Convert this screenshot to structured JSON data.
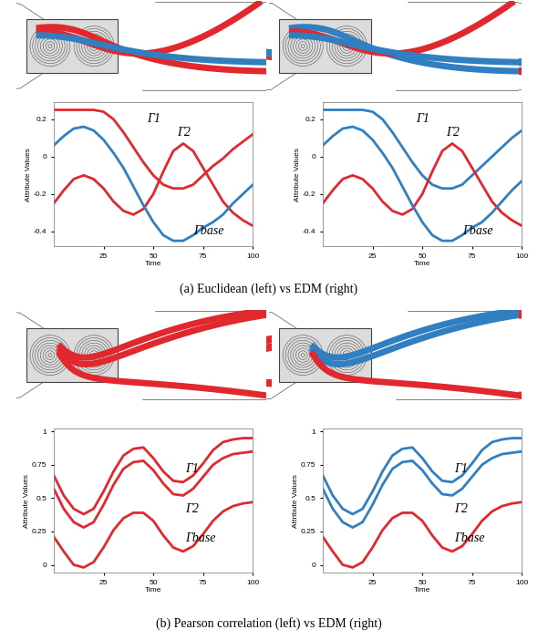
{
  "chart_data": [
    {
      "type": "line",
      "xlabel": "Time",
      "ylabel": "Attribute Values",
      "xlim": [
        0,
        100
      ],
      "ylim": [
        -0.48,
        0.29
      ],
      "xticks": [
        25,
        50,
        75,
        100
      ],
      "yticks": [
        -0.4,
        -0.2,
        0,
        0.2
      ],
      "x": [
        0,
        5,
        10,
        15,
        20,
        25,
        30,
        35,
        40,
        45,
        50,
        55,
        60,
        65,
        70,
        75,
        80,
        85,
        90,
        95,
        100
      ],
      "series": [
        {
          "name": "Γ1",
          "color": "#e0282e",
          "values": [
            0.25,
            0.25,
            0.25,
            0.25,
            0.25,
            0.24,
            0.2,
            0.13,
            0.05,
            -0.03,
            -0.1,
            -0.15,
            -0.17,
            -0.17,
            -0.15,
            -0.1,
            -0.05,
            -0.01,
            0.04,
            0.08,
            0.12
          ]
        },
        {
          "name": "Γ2",
          "color": "#e0282e",
          "values": [
            -0.25,
            -0.18,
            -0.12,
            -0.1,
            -0.12,
            -0.17,
            -0.24,
            -0.29,
            -0.31,
            -0.28,
            -0.2,
            -0.08,
            0.03,
            0.07,
            0.03,
            -0.06,
            -0.15,
            -0.24,
            -0.3,
            -0.34,
            -0.37
          ]
        },
        {
          "name": "Γbase",
          "color": "#2f7fc1",
          "values": [
            0.06,
            0.11,
            0.15,
            0.16,
            0.14,
            0.09,
            0.02,
            -0.06,
            -0.16,
            -0.26,
            -0.35,
            -0.42,
            -0.45,
            -0.45,
            -0.42,
            -0.38,
            -0.35,
            -0.31,
            -0.25,
            -0.2,
            -0.15
          ]
        }
      ]
    },
    {
      "type": "line",
      "xlabel": "Time",
      "ylabel": "Attribute Values",
      "xlim": [
        0,
        100
      ],
      "ylim": [
        -0.48,
        0.29
      ],
      "xticks": [
        25,
        50,
        75,
        100
      ],
      "yticks": [
        -0.4,
        -0.2,
        0,
        0.2
      ],
      "x": [
        0,
        5,
        10,
        15,
        20,
        25,
        30,
        35,
        40,
        45,
        50,
        55,
        60,
        65,
        70,
        75,
        80,
        85,
        90,
        95,
        100
      ],
      "series": [
        {
          "name": "Γ1",
          "color": "#2f7fc1",
          "values": [
            0.25,
            0.25,
            0.25,
            0.25,
            0.25,
            0.24,
            0.2,
            0.13,
            0.05,
            -0.03,
            -0.1,
            -0.15,
            -0.17,
            -0.17,
            -0.15,
            -0.1,
            -0.05,
            0.0,
            0.05,
            0.1,
            0.14
          ]
        },
        {
          "name": "Γ2",
          "color": "#e0282e",
          "values": [
            -0.25,
            -0.18,
            -0.12,
            -0.1,
            -0.12,
            -0.17,
            -0.24,
            -0.29,
            -0.31,
            -0.28,
            -0.2,
            -0.08,
            0.03,
            0.07,
            0.03,
            -0.06,
            -0.15,
            -0.24,
            -0.3,
            -0.34,
            -0.37
          ]
        },
        {
          "name": "Γbase",
          "color": "#2f7fc1",
          "values": [
            0.06,
            0.11,
            0.15,
            0.16,
            0.14,
            0.09,
            0.02,
            -0.06,
            -0.16,
            -0.26,
            -0.35,
            -0.42,
            -0.45,
            -0.45,
            -0.42,
            -0.38,
            -0.35,
            -0.3,
            -0.24,
            -0.18,
            -0.13
          ]
        }
      ]
    },
    {
      "type": "line",
      "xlabel": "Time",
      "ylabel": "Attribute Values",
      "xlim": [
        0,
        100
      ],
      "ylim": [
        -0.06,
        1.02
      ],
      "xticks": [
        25,
        50,
        75,
        100
      ],
      "yticks": [
        0,
        0.25,
        0.5,
        0.75,
        1
      ],
      "x": [
        0,
        5,
        10,
        15,
        20,
        25,
        30,
        35,
        40,
        45,
        50,
        55,
        60,
        65,
        70,
        75,
        80,
        85,
        90,
        95,
        100
      ],
      "series": [
        {
          "name": "Γ1",
          "color": "#e0282e",
          "values": [
            0.67,
            0.52,
            0.42,
            0.38,
            0.42,
            0.55,
            0.7,
            0.82,
            0.87,
            0.88,
            0.8,
            0.7,
            0.63,
            0.62,
            0.67,
            0.76,
            0.86,
            0.92,
            0.94,
            0.95,
            0.95
          ]
        },
        {
          "name": "Γ2",
          "color": "#e0282e",
          "values": [
            0.57,
            0.42,
            0.32,
            0.28,
            0.32,
            0.45,
            0.6,
            0.72,
            0.77,
            0.78,
            0.71,
            0.61,
            0.53,
            0.52,
            0.57,
            0.66,
            0.75,
            0.8,
            0.83,
            0.84,
            0.85
          ]
        },
        {
          "name": "Γbase",
          "color": "#e0282e",
          "values": [
            0.21,
            0.1,
            0.0,
            -0.02,
            0.02,
            0.13,
            0.26,
            0.35,
            0.39,
            0.39,
            0.33,
            0.22,
            0.13,
            0.1,
            0.14,
            0.23,
            0.33,
            0.4,
            0.44,
            0.46,
            0.47
          ]
        }
      ]
    },
    {
      "type": "line",
      "xlabel": "Time",
      "ylabel": "Attribute Values",
      "xlim": [
        0,
        100
      ],
      "ylim": [
        -0.06,
        1.02
      ],
      "xticks": [
        25,
        50,
        75,
        100
      ],
      "yticks": [
        0,
        0.25,
        0.5,
        0.75,
        1
      ],
      "x": [
        0,
        5,
        10,
        15,
        20,
        25,
        30,
        35,
        40,
        45,
        50,
        55,
        60,
        65,
        70,
        75,
        80,
        85,
        90,
        95,
        100
      ],
      "series": [
        {
          "name": "Γ1",
          "color": "#2f7fc1",
          "values": [
            0.67,
            0.52,
            0.42,
            0.38,
            0.42,
            0.55,
            0.7,
            0.82,
            0.87,
            0.88,
            0.8,
            0.7,
            0.63,
            0.62,
            0.67,
            0.76,
            0.86,
            0.92,
            0.94,
            0.95,
            0.95
          ]
        },
        {
          "name": "Γ2",
          "color": "#2f7fc1",
          "values": [
            0.57,
            0.42,
            0.32,
            0.28,
            0.32,
            0.45,
            0.6,
            0.72,
            0.77,
            0.78,
            0.71,
            0.61,
            0.53,
            0.52,
            0.57,
            0.66,
            0.75,
            0.8,
            0.83,
            0.84,
            0.85
          ]
        },
        {
          "name": "Γbase",
          "color": "#e0282e",
          "values": [
            0.21,
            0.1,
            0.0,
            -0.02,
            0.02,
            0.13,
            0.26,
            0.35,
            0.39,
            0.39,
            0.33,
            0.22,
            0.13,
            0.1,
            0.14,
            0.23,
            0.33,
            0.4,
            0.44,
            0.46,
            0.47
          ]
        }
      ]
    }
  ],
  "captions": [
    "(a) Euclidean (left) vs EDM (right)",
    "(b) Pearson correlation (left) vs EDM (right)"
  ]
}
